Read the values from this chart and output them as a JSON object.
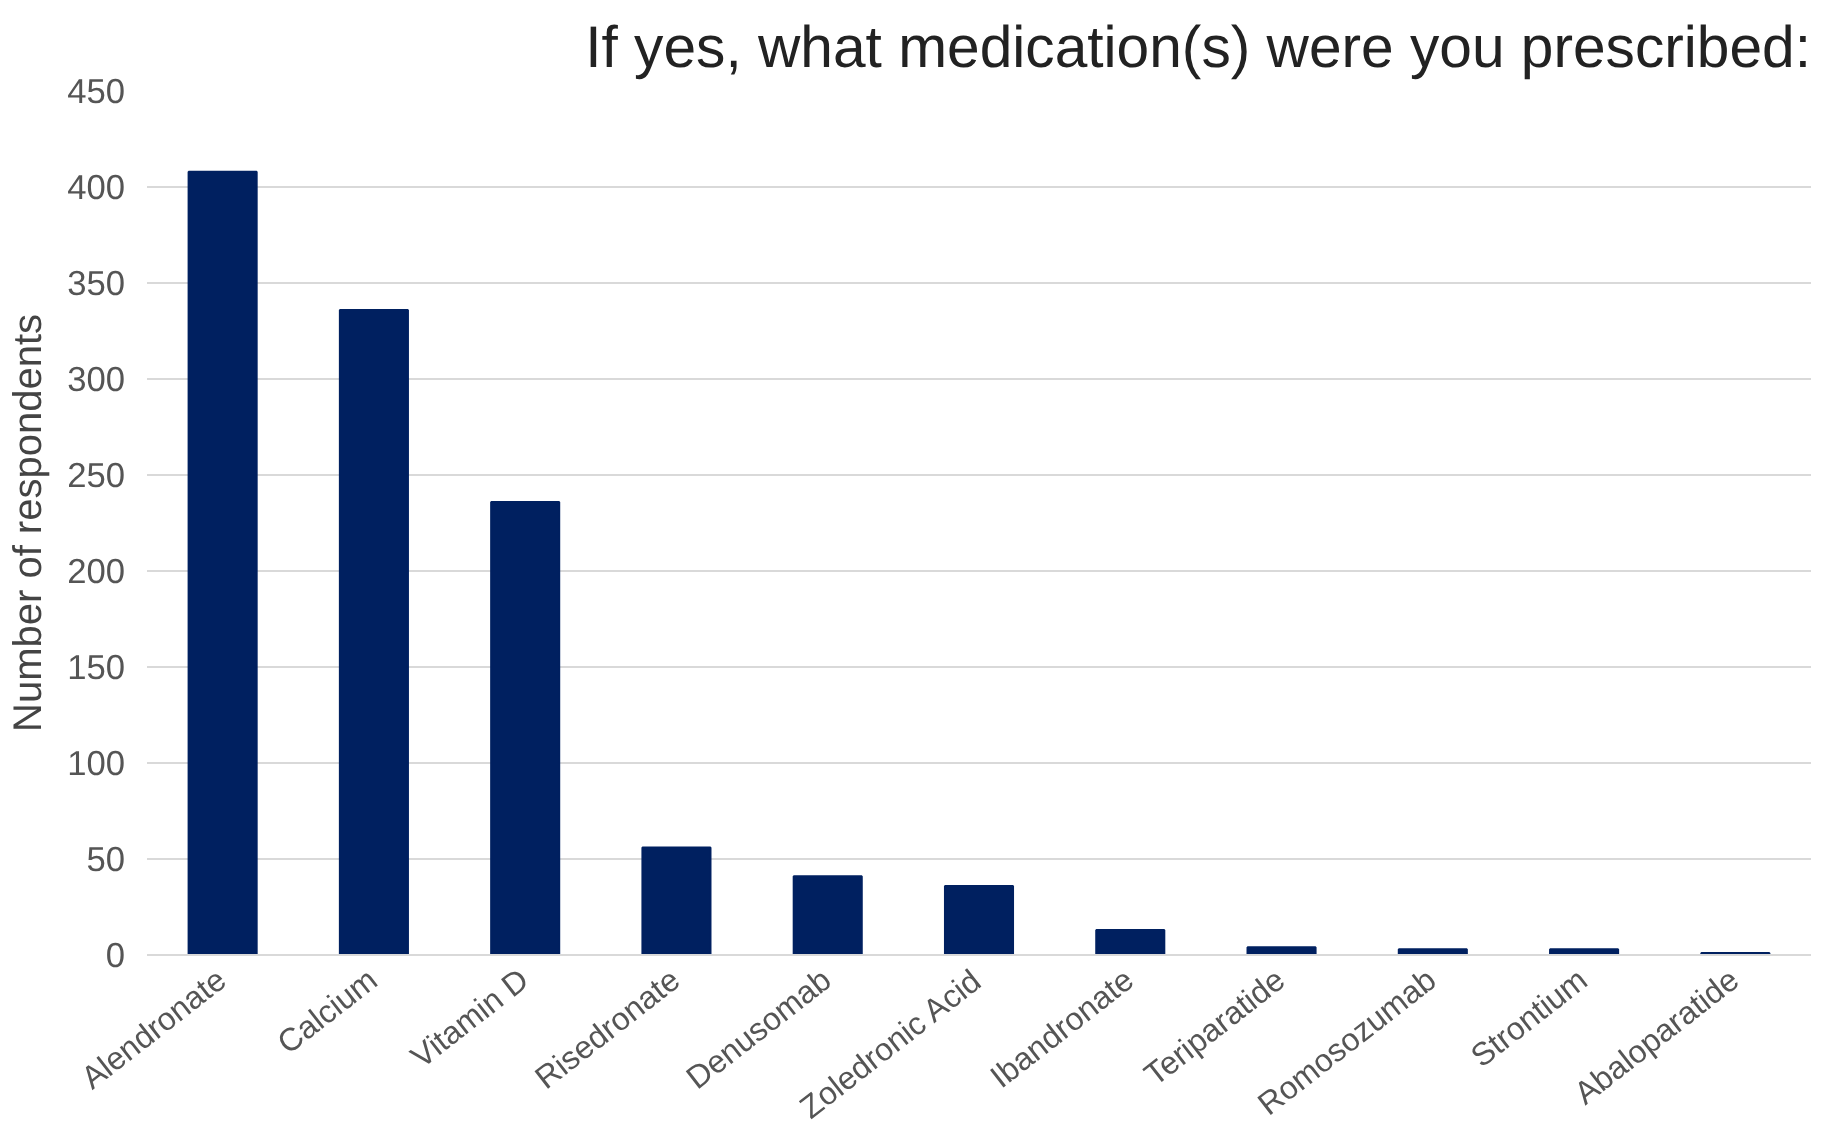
{
  "chart_data": {
    "type": "bar",
    "title": "If yes, what medication(s) were you prescribed:",
    "ylabel": "Number of respondents",
    "categories": [
      "Alendronate",
      "Calcium",
      "Vitamin D",
      "Risedronate",
      "Denusomab",
      "Zoledronic Acid",
      "Ibandronate",
      "Teriparatide",
      "Romosozumab",
      "Strontium",
      "Abaloparatide"
    ],
    "values": [
      408,
      336,
      236,
      56,
      41,
      36,
      13,
      4,
      3,
      3,
      1
    ],
    "color": "#002060",
    "ylim": [
      0,
      450
    ],
    "yticks": [
      0,
      50,
      100,
      150,
      200,
      250,
      300,
      350,
      400,
      450
    ],
    "grid": "y"
  }
}
